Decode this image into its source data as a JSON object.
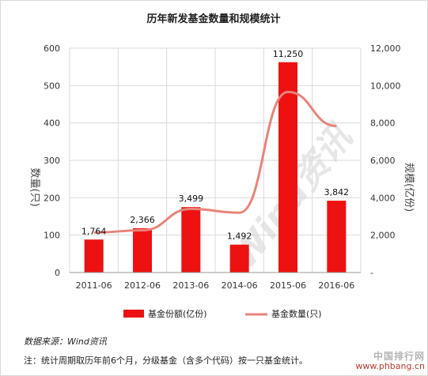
{
  "chart_data": {
    "type": "bar",
    "title": "历年新发基金数量和规模统计",
    "categories": [
      "2011-06",
      "2012-06",
      "2013-06",
      "2014-06",
      "2015-06",
      "2016-06"
    ],
    "series": [
      {
        "name": "基金份额(亿份)",
        "kind": "bar",
        "axis": "right",
        "values": [
          1764,
          2366,
          3499,
          1492,
          11250,
          3842
        ],
        "labels": [
          "1,764",
          "2,366",
          "3,499",
          "1,492",
          "11,250",
          "3,842"
        ],
        "color": "#ee1111"
      },
      {
        "name": "基金数量(只)",
        "kind": "line",
        "axis": "left",
        "values": [
          107,
          113,
          170,
          160,
          483,
          392
        ],
        "color": "#e8847a"
      }
    ],
    "ylabel_left": "数量(只)",
    "ylabel_right": "规模(亿份)",
    "ylim_left": [
      0,
      600
    ],
    "ylim_right": [
      0,
      12000
    ],
    "yticks_left": [
      "0",
      "100",
      "200",
      "300",
      "400",
      "500",
      "600"
    ],
    "yticks_right": [
      "-",
      "2,000",
      "4,000",
      "6,000",
      "8,000",
      "10,000",
      "12,000"
    ],
    "grid": true,
    "legend_position": "bottom"
  },
  "source": "数据来源：Wind资讯",
  "footnote": "注：统计周期取历年前6个月，分级基金（含多个代码）按一只基金统计。",
  "watermarks": {
    "center": "Wind资讯",
    "brand_cn": "中国排行网",
    "brand_url": "www.phbang.cn"
  }
}
